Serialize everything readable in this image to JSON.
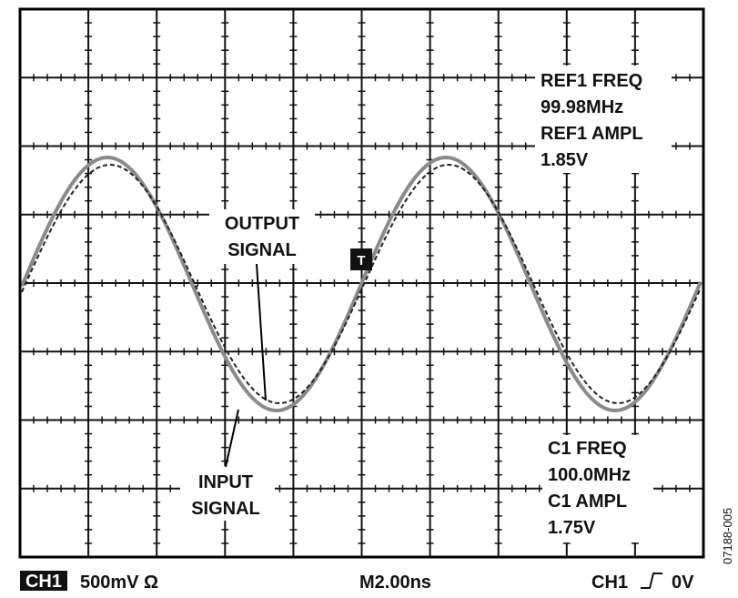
{
  "screen": {
    "trigger_marker": "T",
    "ref_readout": [
      "REF1 FREQ",
      "99.98MHz",
      "REF1 AMPL",
      "1.85V"
    ],
    "channel_readout": [
      "C1 FREQ",
      "100.0MHz",
      "C1 AMPL",
      "1.75V"
    ],
    "annotations": [
      {
        "lines": [
          "OUTPUT",
          "SIGNAL"
        ]
      },
      {
        "lines": [
          "INPUT",
          "SIGNAL"
        ]
      }
    ]
  },
  "status_bar": {
    "channel": "CH1",
    "scale": "500mV Ω",
    "timebase": "M2.00ns",
    "trigger_channel": "CH1",
    "trigger_level": "0V"
  },
  "figure_id": "07188-005"
}
